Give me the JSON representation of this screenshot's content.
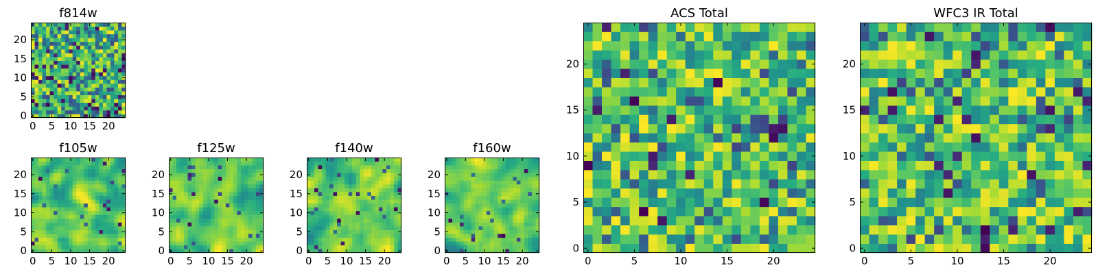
{
  "chart_data": [
    {
      "type": "heatmap",
      "title": "f814w",
      "nx": 25,
      "ny": 25,
      "xticks": [
        0,
        5,
        10,
        15,
        20
      ],
      "yticks": [
        0,
        5,
        10,
        15,
        20
      ],
      "xlim": [
        0,
        24
      ],
      "ylim": [
        0,
        24
      ],
      "colormap": "viridis",
      "seed": 814,
      "smooth": 0,
      "dark_fraction": 0.07
    },
    {
      "type": "heatmap",
      "title": "f105w",
      "nx": 25,
      "ny": 25,
      "xticks": [
        0,
        5,
        10,
        15,
        20
      ],
      "yticks": [
        0,
        5,
        10,
        15,
        20
      ],
      "xlim": [
        0,
        24
      ],
      "ylim": [
        0,
        24
      ],
      "colormap": "viridis",
      "seed": 105,
      "smooth": 2,
      "dark_fraction": 0.01
    },
    {
      "type": "heatmap",
      "title": "f125w",
      "nx": 25,
      "ny": 25,
      "xticks": [
        0,
        5,
        10,
        15,
        20
      ],
      "yticks": [
        0,
        5,
        10,
        15,
        20
      ],
      "xlim": [
        0,
        24
      ],
      "ylim": [
        0,
        24
      ],
      "colormap": "viridis",
      "seed": 125,
      "smooth": 2,
      "dark_fraction": 0.01
    },
    {
      "type": "heatmap",
      "title": "f140w",
      "nx": 25,
      "ny": 25,
      "xticks": [
        0,
        5,
        10,
        15,
        20
      ],
      "yticks": [
        0,
        5,
        10,
        15,
        20
      ],
      "xlim": [
        0,
        24
      ],
      "ylim": [
        0,
        24
      ],
      "colormap": "viridis",
      "seed": 140,
      "smooth": 2,
      "dark_fraction": 0.01
    },
    {
      "type": "heatmap",
      "title": "f160w",
      "nx": 25,
      "ny": 25,
      "xticks": [
        0,
        5,
        10,
        15,
        20
      ],
      "yticks": [
        0,
        5,
        10,
        15,
        20
      ],
      "xlim": [
        0,
        24
      ],
      "ylim": [
        0,
        24
      ],
      "colormap": "viridis",
      "seed": 160,
      "smooth": 2,
      "dark_fraction": 0.01
    },
    {
      "type": "heatmap",
      "title": "ACS Total",
      "nx": 25,
      "ny": 25,
      "xticks": [
        0,
        5,
        10,
        15,
        20
      ],
      "yticks": [
        0,
        5,
        10,
        15,
        20
      ],
      "xlim": [
        0,
        24
      ],
      "ylim": [
        0,
        24
      ],
      "colormap": "viridis",
      "seed": 901,
      "smooth": 0,
      "dark_fraction": 0.04
    },
    {
      "type": "heatmap",
      "title": "WFC3 IR Total",
      "nx": 25,
      "ny": 25,
      "xticks": [
        0,
        5,
        10,
        15,
        20
      ],
      "yticks": [
        0,
        5,
        10,
        15,
        20
      ],
      "xlim": [
        0,
        24
      ],
      "ylim": [
        0,
        24
      ],
      "colormap": "viridis",
      "seed": 902,
      "smooth": 0,
      "dark_fraction": 0.03
    }
  ]
}
